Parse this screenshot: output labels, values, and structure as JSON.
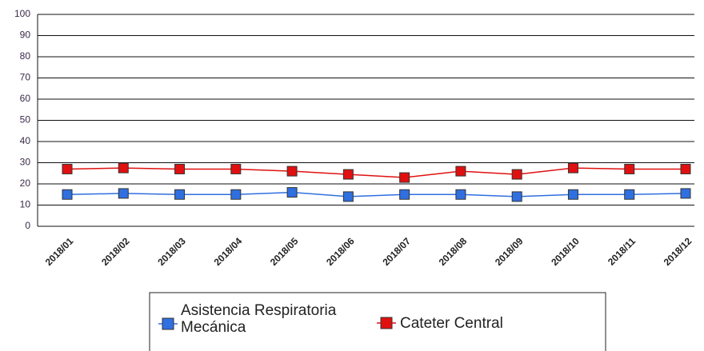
{
  "chart_data": {
    "type": "line",
    "categories": [
      "2018/01",
      "2018/02",
      "2018/03",
      "2018/04",
      "2018/05",
      "2018/06",
      "2018/07",
      "2018/08",
      "2018/09",
      "2018/10",
      "2018/11",
      "2018/12"
    ],
    "series": [
      {
        "name": "Asistencia Respiratoria Mecánica",
        "color": "#2f6fe0",
        "values": [
          15,
          15.5,
          15,
          15,
          16,
          14,
          15,
          15,
          14,
          15,
          15,
          15.5
        ]
      },
      {
        "name": "Cateter Central",
        "color": "#e01010",
        "values": [
          27,
          27.5,
          27,
          27,
          26,
          24.5,
          23,
          26,
          24.5,
          27.5,
          27,
          27
        ]
      }
    ],
    "ylim": [
      0,
      100
    ],
    "yticks": [
      0,
      10,
      20,
      30,
      40,
      50,
      60,
      70,
      80,
      90,
      100
    ],
    "grid": true
  }
}
